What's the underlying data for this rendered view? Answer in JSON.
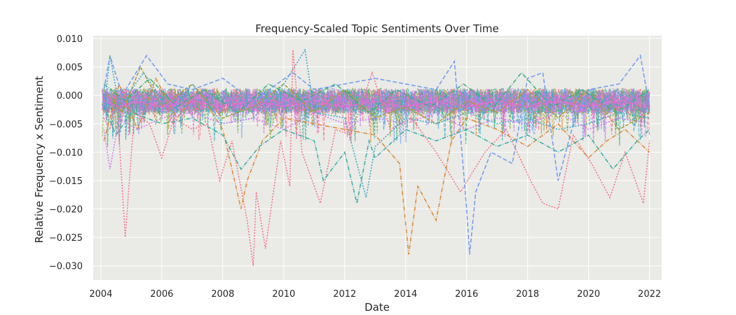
{
  "chart_data": {
    "type": "line",
    "title": "Frequency-Scaled Topic Sentiments Over Time",
    "xlabel": "Date",
    "ylabel": "Relative Frequency x Sentiment",
    "xlim": [
      2003.75,
      2022.4
    ],
    "ylim": [
      -0.0325,
      0.0105
    ],
    "x_ticks": [
      2004,
      2006,
      2008,
      2010,
      2012,
      2014,
      2016,
      2018,
      2020,
      2022
    ],
    "x_tick_labels": [
      "2004",
      "2006",
      "2008",
      "2010",
      "2012",
      "2014",
      "2016",
      "2018",
      "2020",
      "2022"
    ],
    "y_ticks": [
      0.01,
      0.005,
      0.0,
      -0.005,
      -0.01,
      -0.015,
      -0.02,
      -0.025,
      -0.03
    ],
    "y_tick_labels": [
      "0.010",
      "0.005",
      "0.000",
      "−0.005",
      "−0.010",
      "−0.015",
      "−0.020",
      "−0.025",
      "−0.030"
    ],
    "grid": true,
    "background_color": "#eaeae6",
    "series_colors": [
      "#f77189",
      "#dc8932",
      "#ae9d31",
      "#77ab31",
      "#33b07a",
      "#36ada4",
      "#38a9c5",
      "#6e9bf4",
      "#cc7af4",
      "#f565cc"
    ],
    "series": [
      {
        "color": "#f77189",
        "dash": "2,2",
        "values": [
          [
            2004.1,
            -0.004
          ],
          [
            2004.3,
            -0.006
          ],
          [
            2004.5,
            0.001
          ],
          [
            2004.8,
            -0.025
          ],
          [
            2005.1,
            -0.003
          ],
          [
            2005.6,
            -0.005
          ],
          [
            2006.0,
            -0.011
          ],
          [
            2006.4,
            -0.004
          ],
          [
            2007.0,
            -0.006
          ],
          [
            2007.5,
            -0.005
          ],
          [
            2007.9,
            -0.015
          ],
          [
            2008.3,
            -0.008
          ],
          [
            2008.8,
            -0.022
          ],
          [
            2009.0,
            -0.03
          ],
          [
            2009.1,
            -0.017
          ],
          [
            2009.4,
            -0.027
          ],
          [
            2009.9,
            -0.008
          ],
          [
            2010.2,
            -0.016
          ],
          [
            2010.3,
            0.008
          ],
          [
            2010.6,
            -0.01
          ],
          [
            2011.2,
            -0.019
          ],
          [
            2011.7,
            -0.006
          ],
          [
            2012.2,
            -0.007
          ],
          [
            2012.9,
            0.004
          ],
          [
            2013.5,
            -0.006
          ],
          [
            2014.2,
            -0.004
          ],
          [
            2015.0,
            -0.01
          ],
          [
            2015.8,
            -0.017
          ],
          [
            2016.6,
            -0.01
          ],
          [
            2017.3,
            -0.006
          ],
          [
            2018.1,
            -0.015
          ],
          [
            2018.5,
            -0.019
          ],
          [
            2019.0,
            -0.02
          ],
          [
            2019.5,
            -0.007
          ],
          [
            2020.1,
            -0.012
          ],
          [
            2020.7,
            -0.018
          ],
          [
            2021.2,
            -0.01
          ],
          [
            2021.8,
            -0.019
          ],
          [
            2022.0,
            -0.008
          ]
        ]
      },
      {
        "color": "#dc8932",
        "dash": "6,2,1,2",
        "values": [
          [
            2004.1,
            -0.008
          ],
          [
            2004.6,
            0.002
          ],
          [
            2005.2,
            -0.006
          ],
          [
            2005.8,
            0.003
          ],
          [
            2006.5,
            -0.004
          ],
          [
            2007.2,
            0.001
          ],
          [
            2008.0,
            -0.006
          ],
          [
            2008.6,
            -0.02
          ],
          [
            2008.8,
            -0.015
          ],
          [
            2009.3,
            -0.008
          ],
          [
            2010.0,
            -0.004
          ],
          [
            2011.0,
            -0.005
          ],
          [
            2012.0,
            -0.006
          ],
          [
            2013.0,
            -0.007
          ],
          [
            2013.8,
            -0.012
          ],
          [
            2014.1,
            -0.028
          ],
          [
            2014.4,
            -0.016
          ],
          [
            2014.8,
            -0.02
          ],
          [
            2015.0,
            -0.022
          ],
          [
            2015.5,
            -0.008
          ],
          [
            2016.0,
            -0.004
          ],
          [
            2017.0,
            -0.006
          ],
          [
            2018.0,
            -0.009
          ],
          [
            2019.0,
            -0.005
          ],
          [
            2020.0,
            -0.011
          ],
          [
            2020.6,
            -0.008
          ],
          [
            2021.2,
            -0.006
          ],
          [
            2022.0,
            -0.01
          ]
        ]
      },
      {
        "color": "#ae9d31",
        "dash": "5,2",
        "values": [
          [
            2004.1,
            0.001
          ],
          [
            2004.7,
            -0.003
          ],
          [
            2005.3,
            0.005
          ],
          [
            2006.0,
            -0.002
          ],
          [
            2007.0,
            0.002
          ],
          [
            2008.0,
            -0.004
          ],
          [
            2009.0,
            -0.002
          ],
          [
            2010.0,
            0.002
          ],
          [
            2011.0,
            -0.003
          ],
          [
            2012.0,
            0.001
          ],
          [
            2013.0,
            -0.004
          ],
          [
            2014.0,
            -0.002
          ],
          [
            2015.0,
            -0.005
          ],
          [
            2016.0,
            -0.001
          ],
          [
            2017.0,
            -0.003
          ],
          [
            2018.0,
            0.001
          ],
          [
            2019.0,
            -0.004
          ],
          [
            2020.0,
            0.001
          ],
          [
            2021.0,
            -0.006
          ],
          [
            2022.0,
            -0.003
          ]
        ]
      },
      {
        "color": "#33b07a",
        "dash": "6,2,1,2",
        "values": [
          [
            2004.1,
            0.002
          ],
          [
            2004.8,
            -0.001
          ],
          [
            2005.6,
            0.003
          ],
          [
            2006.5,
            -0.002
          ],
          [
            2007.4,
            0.001
          ],
          [
            2008.5,
            -0.003
          ],
          [
            2009.5,
            0.002
          ],
          [
            2010.6,
            -0.001
          ],
          [
            2011.7,
            0.002
          ],
          [
            2012.8,
            -0.003
          ],
          [
            2013.7,
            0.001
          ],
          [
            2014.8,
            -0.002
          ],
          [
            2015.9,
            0.002
          ],
          [
            2016.9,
            -0.002
          ],
          [
            2017.8,
            0.004
          ],
          [
            2018.8,
            -0.002
          ],
          [
            2019.8,
            0.001
          ],
          [
            2020.9,
            -0.003
          ],
          [
            2022.0,
            0.001
          ]
        ]
      },
      {
        "color": "#36ada4",
        "dash": "6,2,1,2",
        "values": [
          [
            2004.1,
            -0.002
          ],
          [
            2004.5,
            -0.007
          ],
          [
            2005.0,
            -0.003
          ],
          [
            2006.0,
            -0.005
          ],
          [
            2007.0,
            -0.004
          ],
          [
            2008.0,
            -0.007
          ],
          [
            2008.6,
            -0.013
          ],
          [
            2009.2,
            -0.009
          ],
          [
            2010.0,
            -0.006
          ],
          [
            2011.0,
            -0.008
          ],
          [
            2011.3,
            -0.015
          ],
          [
            2012.0,
            -0.01
          ],
          [
            2012.4,
            -0.019
          ],
          [
            2012.8,
            -0.008
          ],
          [
            2013.0,
            -0.011
          ],
          [
            2014.0,
            -0.006
          ],
          [
            2015.0,
            -0.008
          ],
          [
            2016.0,
            -0.006
          ],
          [
            2017.0,
            -0.009
          ],
          [
            2018.0,
            -0.007
          ],
          [
            2019.0,
            -0.01
          ],
          [
            2020.0,
            -0.007
          ],
          [
            2020.8,
            -0.013
          ],
          [
            2021.6,
            -0.008
          ],
          [
            2022.0,
            -0.006
          ]
        ]
      },
      {
        "color": "#38a9c5",
        "dash": "2,2",
        "values": [
          [
            2004.1,
            -0.003
          ],
          [
            2004.3,
            0.007
          ],
          [
            2004.6,
            -0.002
          ],
          [
            2005.4,
            0.004
          ],
          [
            2006.3,
            -0.003
          ],
          [
            2007.0,
            0.002
          ],
          [
            2008.0,
            -0.005
          ],
          [
            2009.0,
            -0.004
          ],
          [
            2010.0,
            0.002
          ],
          [
            2010.7,
            0.008
          ],
          [
            2011.0,
            -0.003
          ],
          [
            2012.0,
            -0.004
          ],
          [
            2012.7,
            -0.018
          ],
          [
            2013.0,
            -0.009
          ],
          [
            2014.0,
            -0.004
          ],
          [
            2015.0,
            -0.005
          ],
          [
            2016.0,
            -0.003
          ],
          [
            2017.0,
            -0.005
          ],
          [
            2018.0,
            -0.004
          ],
          [
            2019.0,
            -0.006
          ],
          [
            2020.0,
            -0.005
          ],
          [
            2021.0,
            -0.003
          ],
          [
            2022.0,
            -0.004
          ]
        ]
      },
      {
        "color": "#6e9bf4",
        "dash": "6,3",
        "values": [
          [
            2004.1,
            0.001
          ],
          [
            2004.3,
            0.007
          ],
          [
            2004.7,
            0.0
          ],
          [
            2005.5,
            0.007
          ],
          [
            2006.2,
            0.002
          ],
          [
            2007.0,
            0.001
          ],
          [
            2008.0,
            0.003
          ],
          [
            2009.0,
            -0.001
          ],
          [
            2010.3,
            0.004
          ],
          [
            2011.0,
            0.001
          ],
          [
            2012.0,
            0.002
          ],
          [
            2013.0,
            0.003
          ],
          [
            2014.0,
            0.002
          ],
          [
            2015.0,
            0.001
          ],
          [
            2015.6,
            0.006
          ],
          [
            2016.0,
            -0.02
          ],
          [
            2016.1,
            -0.028
          ],
          [
            2016.3,
            -0.017
          ],
          [
            2016.8,
            -0.01
          ],
          [
            2017.5,
            -0.012
          ],
          [
            2018.0,
            0.003
          ],
          [
            2018.5,
            0.004
          ],
          [
            2019.0,
            -0.015
          ],
          [
            2019.5,
            -0.005
          ],
          [
            2020.0,
            0.001
          ],
          [
            2021.0,
            0.002
          ],
          [
            2021.7,
            0.007
          ],
          [
            2022.0,
            -0.002
          ]
        ]
      },
      {
        "color": "#cc7af4",
        "dash": "2,2",
        "values": [
          [
            2004.1,
            -0.006
          ],
          [
            2004.3,
            -0.013
          ],
          [
            2004.6,
            -0.004
          ],
          [
            2005.2,
            -0.006
          ],
          [
            2006.0,
            -0.004
          ],
          [
            2007.0,
            -0.003
          ],
          [
            2008.0,
            -0.005
          ],
          [
            2009.0,
            -0.004
          ],
          [
            2010.0,
            -0.006
          ],
          [
            2011.0,
            -0.003
          ],
          [
            2012.0,
            -0.005
          ],
          [
            2013.0,
            -0.004
          ],
          [
            2014.0,
            -0.005
          ],
          [
            2015.0,
            -0.003
          ],
          [
            2016.0,
            -0.006
          ],
          [
            2017.0,
            -0.004
          ],
          [
            2018.0,
            -0.005
          ],
          [
            2019.0,
            -0.003
          ],
          [
            2020.0,
            -0.006
          ],
          [
            2021.0,
            -0.004
          ],
          [
            2022.0,
            -0.005
          ]
        ]
      },
      {
        "color": "#f565cc",
        "dash": "4,2",
        "values": [
          [
            2004.1,
            -0.001
          ],
          [
            2004.6,
            -0.002
          ],
          [
            2005.2,
            -0.001
          ],
          [
            2006.0,
            -0.002
          ],
          [
            2007.0,
            -0.001
          ],
          [
            2008.0,
            -0.002
          ],
          [
            2009.0,
            -0.001
          ],
          [
            2010.0,
            -0.002
          ],
          [
            2011.0,
            -0.001
          ],
          [
            2012.0,
            -0.002
          ],
          [
            2013.0,
            -0.001
          ],
          [
            2014.0,
            -0.002
          ],
          [
            2015.0,
            -0.001
          ],
          [
            2016.0,
            -0.002
          ],
          [
            2017.0,
            -0.001
          ],
          [
            2018.0,
            -0.002
          ],
          [
            2019.0,
            -0.001
          ],
          [
            2020.0,
            -0.002
          ],
          [
            2021.0,
            -0.001
          ],
          [
            2022.0,
            -0.002
          ]
        ]
      }
    ]
  }
}
